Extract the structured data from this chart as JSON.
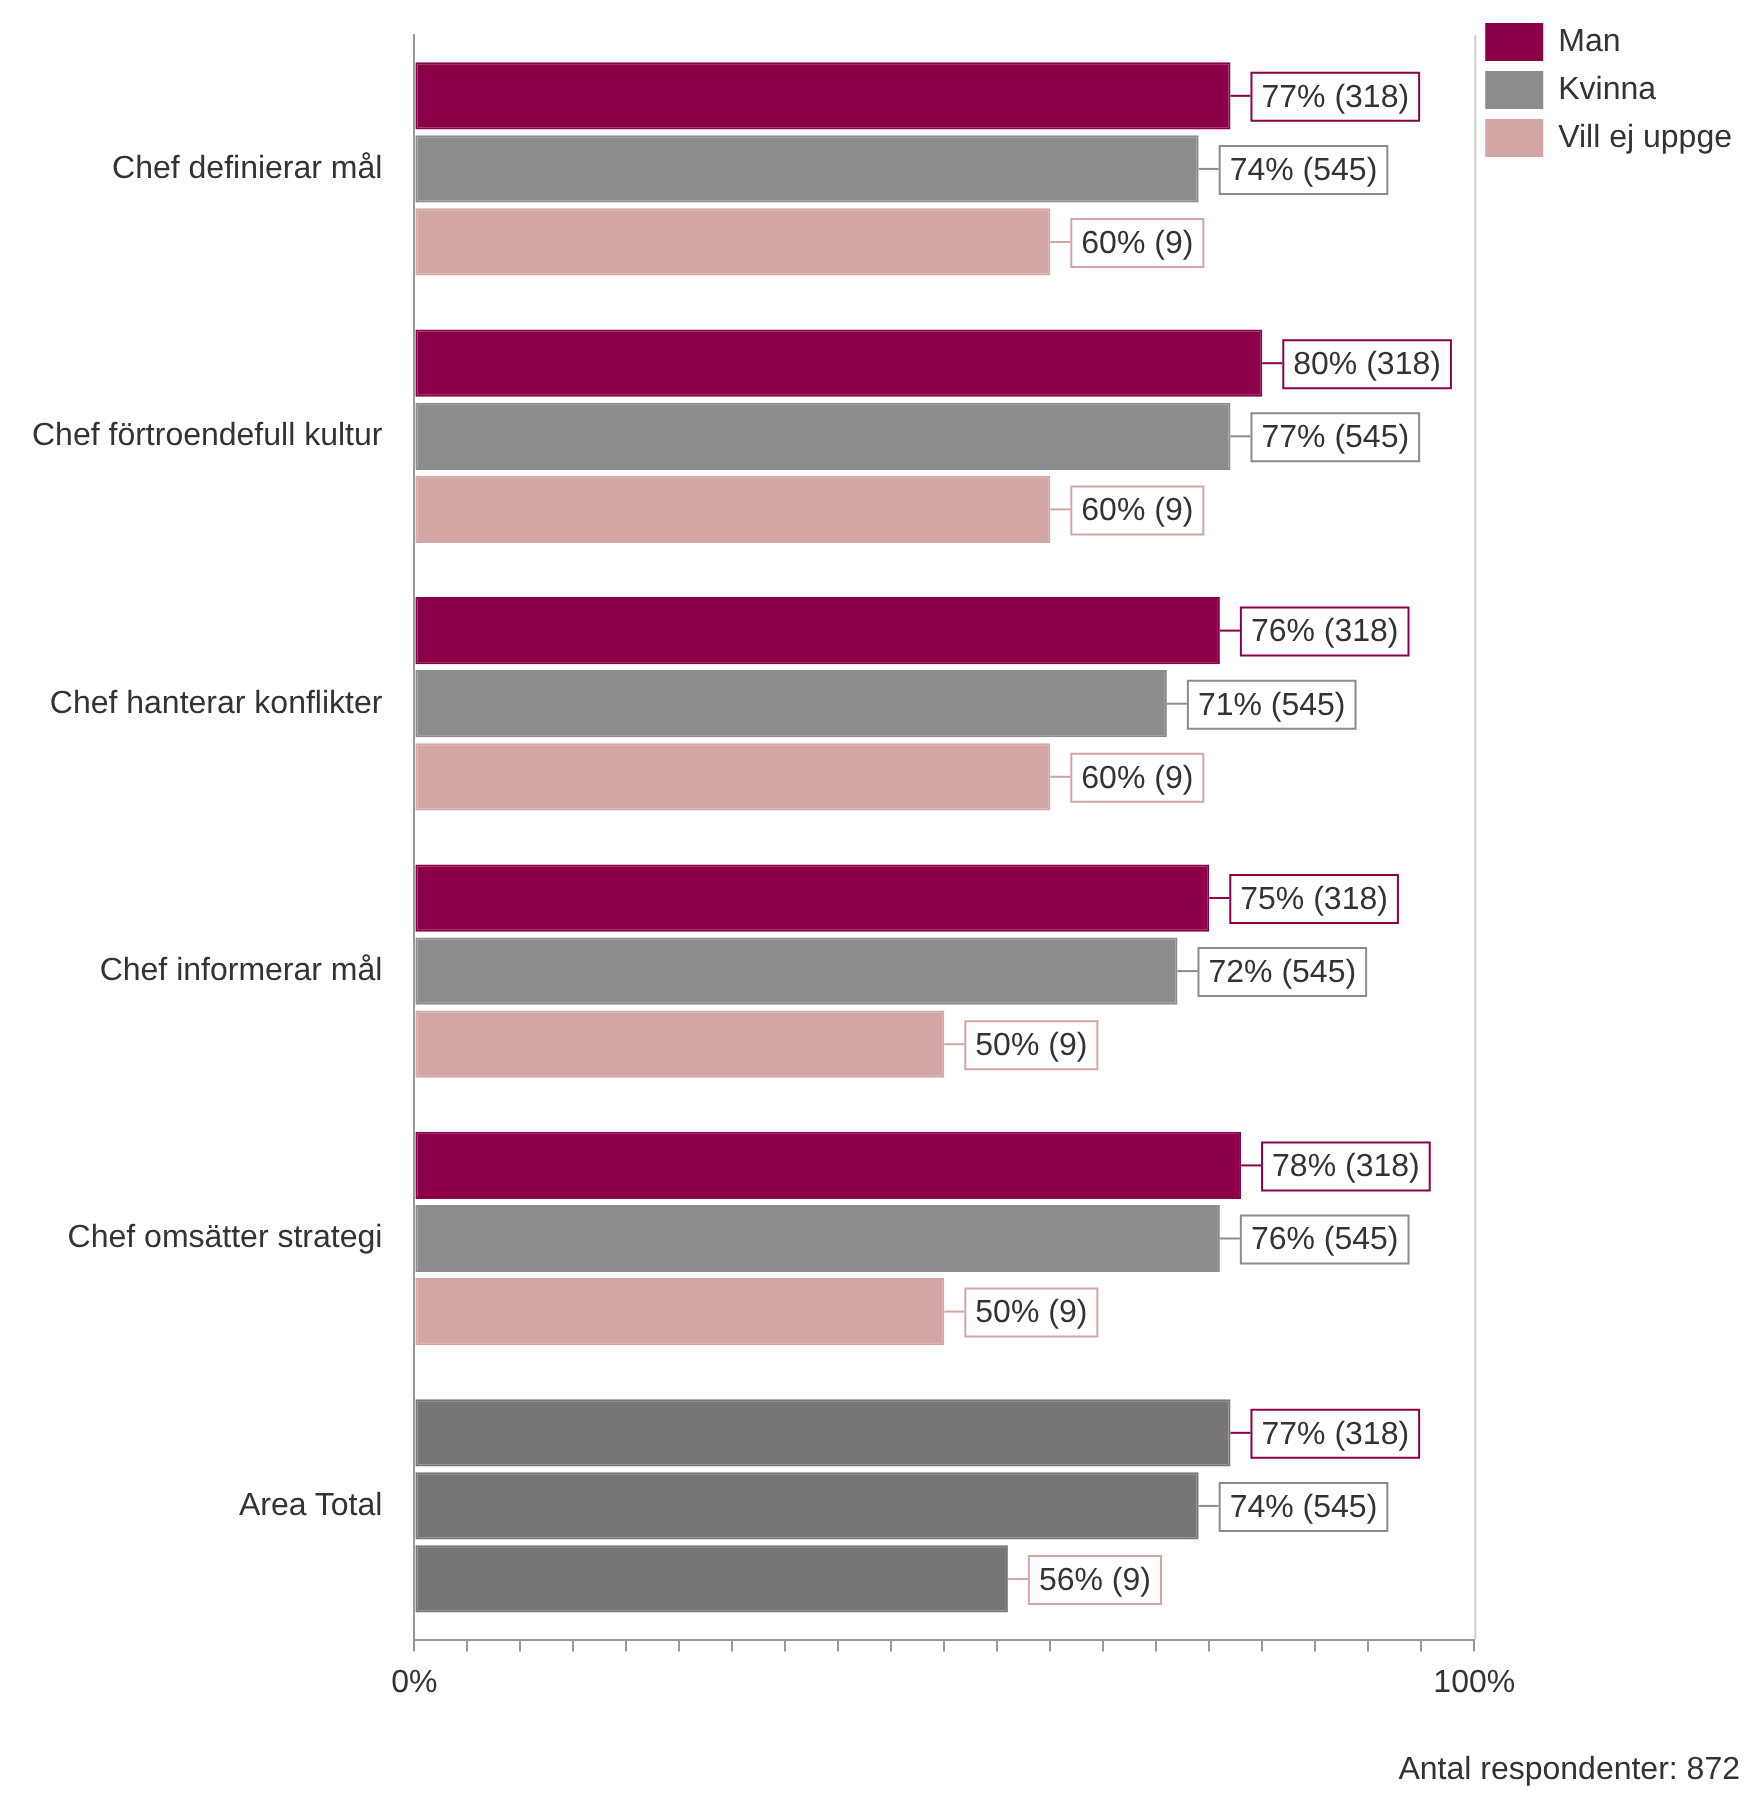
{
  "chart_data": {
    "type": "bar",
    "orientation": "horizontal",
    "categories": [
      "Chef definierar mål",
      "Chef förtroendefull kultur",
      "Chef hanterar konflikter",
      "Chef informerar mål",
      "Chef omsätter strategi",
      "Area Total"
    ],
    "series": [
      {
        "name": "Man",
        "color": "#8b0048",
        "colors": [
          "#8b0048",
          "#8b0048",
          "#8b0048",
          "#8b0048",
          "#8b0048",
          "#777577"
        ],
        "values": [
          77,
          80,
          76,
          75,
          78,
          77
        ],
        "value_labels": [
          "77% (318)",
          "80% (318)",
          "76% (318)",
          "75% (318)",
          "78% (318)",
          "77% (318)"
        ]
      },
      {
        "name": "Kvinna",
        "color": "#8c8c8c",
        "colors": [
          "#8c8c8c",
          "#8c8c8c",
          "#8c8c8c",
          "#8c8c8c",
          "#8c8c8c",
          "#777577"
        ],
        "values": [
          74,
          77,
          71,
          72,
          76,
          74
        ],
        "value_labels": [
          "74% (545)",
          "77% (545)",
          "71% (545)",
          "72% (545)",
          "76% (545)",
          "74% (545)"
        ]
      },
      {
        "name": "Vill ej uppge",
        "color": "#d4a5a5",
        "colors": [
          "#d4a5a5",
          "#d4a5a5",
          "#d4a5a5",
          "#d4a5a5",
          "#d4a5a5",
          "#777577"
        ],
        "values": [
          60,
          60,
          60,
          50,
          50,
          56
        ],
        "value_labels": [
          "60% (9)",
          "60% (9)",
          "60% (9)",
          "50% (9)",
          "50% (9)",
          "56% (9)"
        ]
      }
    ],
    "xlim": [
      0,
      100
    ],
    "xticks": [
      {
        "value": 0,
        "label": "0%"
      },
      {
        "value": 5,
        "label": null
      },
      {
        "value": 10,
        "label": null
      },
      {
        "value": 15,
        "label": null
      },
      {
        "value": 20,
        "label": null
      },
      {
        "value": 25,
        "label": null
      },
      {
        "value": 30,
        "label": null
      },
      {
        "value": 35,
        "label": null
      },
      {
        "value": 40,
        "label": null
      },
      {
        "value": 45,
        "label": null
      },
      {
        "value": 50,
        "label": null
      },
      {
        "value": 55,
        "label": null
      },
      {
        "value": 60,
        "label": null
      },
      {
        "value": 65,
        "label": null
      },
      {
        "value": 70,
        "label": null
      },
      {
        "value": 75,
        "label": null
      },
      {
        "value": 80,
        "label": null
      },
      {
        "value": 85,
        "label": null
      },
      {
        "value": 90,
        "label": null
      },
      {
        "value": 95,
        "label": null
      },
      {
        "value": 100,
        "label": "100%"
      }
    ],
    "ref_lines": [
      {
        "axis": "x",
        "value": 100,
        "color": "#d0d0d0"
      }
    ],
    "legend": "top right",
    "annotations": [
      "Antal respondenter: 872"
    ]
  }
}
